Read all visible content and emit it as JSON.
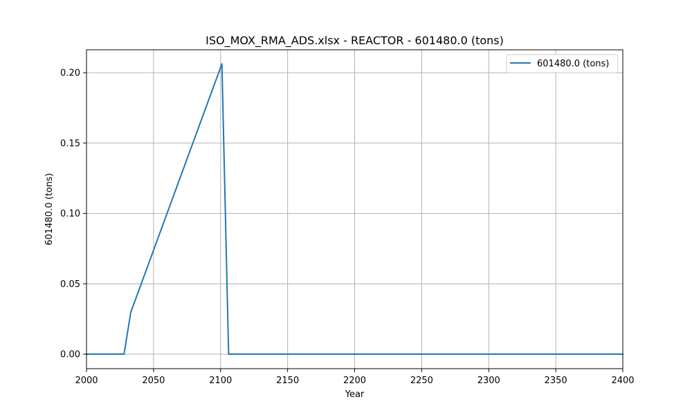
{
  "chart_data": {
    "type": "line",
    "title": "ISO_MOX_RMA_ADS.xlsx - REACTOR - 601480.0 (tons)",
    "xlabel": "Year",
    "ylabel": "601480.0 (tons)",
    "xlim": [
      2000,
      2400
    ],
    "ylim": [
      -0.0103,
      0.2163
    ],
    "xticks": [
      2000,
      2050,
      2100,
      2150,
      2200,
      2250,
      2300,
      2350,
      2400
    ],
    "xtick_labels": [
      "2000",
      "2050",
      "2100",
      "2150",
      "2200",
      "2250",
      "2300",
      "2350",
      "2400"
    ],
    "yticks": [
      0.0,
      0.05,
      0.1,
      0.15,
      0.2
    ],
    "ytick_labels": [
      "0.00",
      "0.05",
      "0.10",
      "0.15",
      "0.20"
    ],
    "grid": true,
    "legend_position": "top-right",
    "series": [
      {
        "name": "601480.0 (tons)",
        "color": "#1f77b4",
        "x": [
          2000,
          2028,
          2033,
          2101,
          2106,
          2400
        ],
        "y": [
          0.0,
          0.0,
          0.0297,
          0.2063,
          0.0,
          0.0
        ]
      }
    ]
  }
}
